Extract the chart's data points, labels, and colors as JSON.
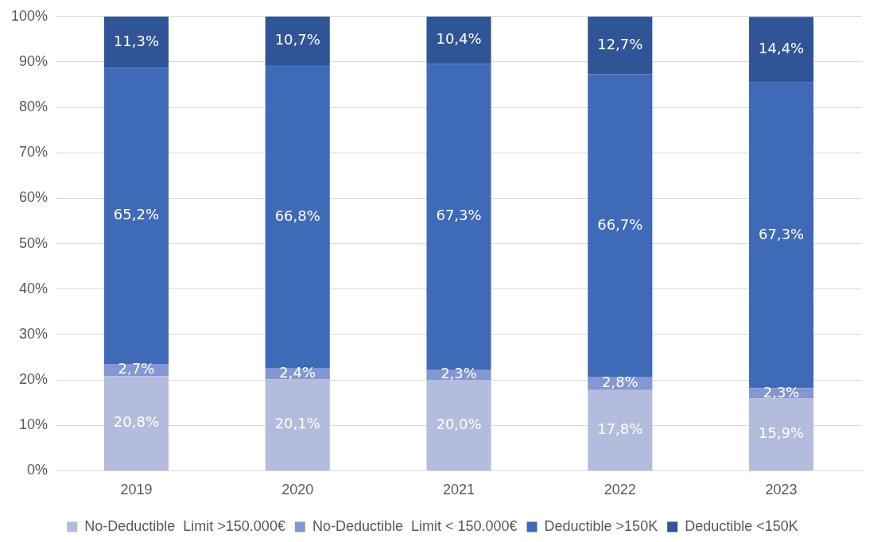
{
  "chart_data": {
    "type": "bar",
    "stacked": true,
    "categories": [
      "2019",
      "2020",
      "2021",
      "2022",
      "2023"
    ],
    "series": [
      {
        "name": "No-Deductible  Limit >150.000€",
        "color": "#b4bcdd",
        "values": [
          20.8,
          20.1,
          20.0,
          17.8,
          15.9
        ],
        "value_labels": [
          "20,8%",
          "20,1%",
          "20,0%",
          "17,8%",
          "15,9%"
        ]
      },
      {
        "name": "No-Deductible  Limit < 150.000€",
        "color": "#8497d3",
        "values": [
          2.7,
          2.4,
          2.3,
          2.8,
          2.3
        ],
        "value_labels": [
          "2,7%",
          "2,4%",
          "2,3%",
          "2,8%",
          "2,3%"
        ]
      },
      {
        "name": "Deductible >150K",
        "color": "#3f6ab8",
        "values": [
          65.2,
          66.8,
          67.3,
          66.7,
          67.3
        ],
        "value_labels": [
          "65,2%",
          "66,8%",
          "67,3%",
          "66,7%",
          "67,3%"
        ]
      },
      {
        "name": "Deductible <150K",
        "color": "#2f5597",
        "values": [
          11.3,
          10.7,
          10.4,
          12.7,
          14.4
        ],
        "value_labels": [
          "11,3%",
          "10,7%",
          "10,4%",
          "12,7%",
          "14,4%"
        ]
      }
    ],
    "ylim": [
      0,
      100
    ],
    "yticks": [
      {
        "value": 0,
        "label": "0%"
      },
      {
        "value": 10,
        "label": "10%"
      },
      {
        "value": 20,
        "label": "20%"
      },
      {
        "value": 30,
        "label": "30%"
      },
      {
        "value": 40,
        "label": "40%"
      },
      {
        "value": 50,
        "label": "50%"
      },
      {
        "value": 60,
        "label": "60%"
      },
      {
        "value": 70,
        "label": "70%"
      },
      {
        "value": 80,
        "label": "80%"
      },
      {
        "value": 90,
        "label": "90%"
      },
      {
        "value": 100,
        "label": "100%"
      }
    ],
    "grid": "y",
    "legend": "bottom"
  }
}
